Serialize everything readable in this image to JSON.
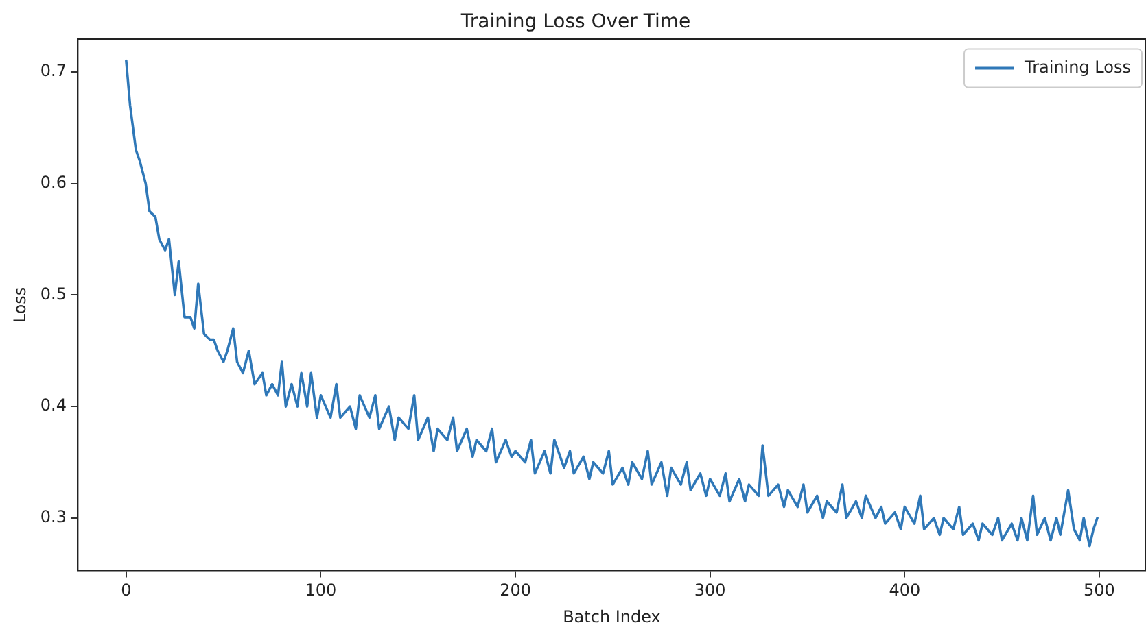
{
  "chart_data": {
    "type": "line",
    "title": "Training Loss Over Time",
    "xlabel": "Batch Index",
    "ylabel": "Loss",
    "x": [
      0,
      2,
      5,
      7,
      10,
      12,
      15,
      17,
      20,
      22,
      25,
      27,
      30,
      33,
      35,
      37,
      40,
      43,
      45,
      47,
      50,
      52,
      55,
      57,
      60,
      63,
      66,
      70,
      72,
      75,
      78,
      80,
      82,
      85,
      88,
      90,
      93,
      95,
      98,
      100,
      105,
      108,
      110,
      115,
      118,
      120,
      125,
      128,
      130,
      135,
      138,
      140,
      145,
      148,
      150,
      155,
      158,
      160,
      165,
      168,
      170,
      175,
      178,
      180,
      185,
      188,
      190,
      195,
      198,
      200,
      205,
      208,
      210,
      215,
      218,
      220,
      225,
      228,
      230,
      235,
      238,
      240,
      245,
      248,
      250,
      255,
      258,
      260,
      265,
      268,
      270,
      275,
      278,
      280,
      285,
      288,
      290,
      295,
      298,
      300,
      305,
      308,
      310,
      315,
      318,
      320,
      325,
      327,
      330,
      335,
      338,
      340,
      345,
      348,
      350,
      355,
      358,
      360,
      365,
      368,
      370,
      375,
      378,
      380,
      385,
      388,
      390,
      395,
      398,
      400,
      405,
      408,
      410,
      415,
      418,
      420,
      425,
      428,
      430,
      435,
      438,
      440,
      445,
      448,
      450,
      455,
      458,
      460,
      463,
      466,
      468,
      472,
      475,
      478,
      480,
      484,
      487,
      490,
      492,
      495,
      497,
      499
    ],
    "series": [
      {
        "name": "Training Loss",
        "color": "#2f78b8",
        "values": [
          0.71,
          0.67,
          0.63,
          0.62,
          0.6,
          0.575,
          0.57,
          0.55,
          0.54,
          0.55,
          0.5,
          0.53,
          0.48,
          0.48,
          0.47,
          0.51,
          0.465,
          0.46,
          0.46,
          0.45,
          0.44,
          0.45,
          0.47,
          0.44,
          0.43,
          0.45,
          0.42,
          0.43,
          0.41,
          0.42,
          0.41,
          0.44,
          0.4,
          0.42,
          0.4,
          0.43,
          0.4,
          0.43,
          0.39,
          0.41,
          0.39,
          0.42,
          0.39,
          0.4,
          0.38,
          0.41,
          0.39,
          0.41,
          0.38,
          0.4,
          0.37,
          0.39,
          0.38,
          0.41,
          0.37,
          0.39,
          0.36,
          0.38,
          0.37,
          0.39,
          0.36,
          0.38,
          0.355,
          0.37,
          0.36,
          0.38,
          0.35,
          0.37,
          0.355,
          0.36,
          0.35,
          0.37,
          0.34,
          0.36,
          0.34,
          0.37,
          0.345,
          0.36,
          0.34,
          0.355,
          0.335,
          0.35,
          0.34,
          0.36,
          0.33,
          0.345,
          0.33,
          0.35,
          0.335,
          0.36,
          0.33,
          0.35,
          0.32,
          0.345,
          0.33,
          0.35,
          0.325,
          0.34,
          0.32,
          0.335,
          0.32,
          0.34,
          0.315,
          0.335,
          0.315,
          0.33,
          0.32,
          0.365,
          0.32,
          0.33,
          0.31,
          0.325,
          0.31,
          0.33,
          0.305,
          0.32,
          0.3,
          0.315,
          0.305,
          0.33,
          0.3,
          0.315,
          0.3,
          0.32,
          0.3,
          0.31,
          0.295,
          0.305,
          0.29,
          0.31,
          0.295,
          0.32,
          0.29,
          0.3,
          0.285,
          0.3,
          0.29,
          0.31,
          0.285,
          0.295,
          0.28,
          0.295,
          0.285,
          0.3,
          0.28,
          0.295,
          0.28,
          0.3,
          0.28,
          0.32,
          0.285,
          0.3,
          0.28,
          0.3,
          0.285,
          0.325,
          0.29,
          0.28,
          0.3,
          0.275,
          0.29,
          0.3
        ]
      }
    ],
    "xlim": [
      -25,
      524
    ],
    "xticks": [
      0,
      100,
      200,
      300,
      400,
      500
    ],
    "ylim": [
      0.253,
      0.729
    ],
    "yticks": [
      0.3,
      0.4,
      0.5,
      0.6,
      0.7
    ],
    "grid": false,
    "legend": "top right",
    "line_style": "solid",
    "marker": "none"
  }
}
